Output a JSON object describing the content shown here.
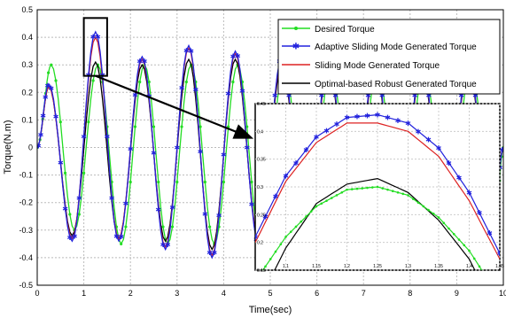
{
  "chart_data": {
    "type": "line",
    "xlabel": "Time(sec)",
    "ylabel": "Torque(N.m)",
    "xlim": [
      0,
      10
    ],
    "ylim": [
      -0.5,
      0.5
    ],
    "xticks": [
      "0",
      "1",
      "2",
      "3",
      "4",
      "5",
      "6",
      "7",
      "8",
      "9",
      "10"
    ],
    "yticks": [
      "0.5",
      "0.4",
      "0.3",
      "0.2",
      "0.1",
      "0",
      "-0.1",
      "-0.2",
      "-0.3",
      "-0.4",
      "-0.5"
    ],
    "grid": "dashed",
    "legend_position": "top-right",
    "series": [
      {
        "name": "Desired Torque",
        "color": "#22dd22",
        "marker": "dot",
        "peaks": [
          [
            0.3,
            0.3
          ],
          [
            1.3,
            0.3
          ],
          [
            2.3,
            0.3
          ],
          [
            3.3,
            0.3
          ],
          [
            4.3,
            0.3
          ],
          [
            5.3,
            0.3
          ],
          [
            6.3,
            0.3
          ],
          [
            7.3,
            0.3
          ],
          [
            8.3,
            0.3
          ],
          [
            9.3,
            0.3
          ]
        ],
        "troughs": [
          [
            0.8,
            -0.3
          ],
          [
            1.8,
            -0.35
          ],
          [
            2.8,
            -0.35
          ],
          [
            3.8,
            -0.35
          ],
          [
            4.8,
            -0.35
          ],
          [
            5.8,
            -0.35
          ],
          [
            6.8,
            -0.35
          ],
          [
            7.8,
            -0.35
          ],
          [
            8.8,
            -0.35
          ],
          [
            9.8,
            -0.35
          ]
        ]
      },
      {
        "name": "Adaptive Sliding Mode Generated Torque",
        "color": "#2222dd",
        "marker": "star",
        "peaks": [
          [
            0.25,
            0.23
          ],
          [
            1.25,
            0.42
          ],
          [
            2.25,
            0.33
          ],
          [
            3.25,
            0.37
          ],
          [
            4.25,
            0.35
          ],
          [
            5.25,
            0.33
          ],
          [
            6.25,
            0.33
          ],
          [
            7.25,
            0.33
          ],
          [
            8.25,
            0.33
          ],
          [
            9.25,
            0.33
          ]
        ],
        "troughs": [
          [
            0.75,
            -0.34
          ],
          [
            1.75,
            -0.34
          ],
          [
            2.75,
            -0.37
          ],
          [
            3.75,
            -0.4
          ],
          [
            4.75,
            -0.35
          ],
          [
            5.75,
            -0.35
          ],
          [
            6.75,
            -0.35
          ],
          [
            7.75,
            -0.35
          ],
          [
            8.75,
            -0.35
          ],
          [
            9.75,
            -0.35
          ]
        ]
      },
      {
        "name": "Sliding Mode Generated Torque",
        "color": "#dd2222",
        "marker": "none",
        "peaks": [
          [
            0.25,
            0.22
          ],
          [
            1.25,
            0.4
          ],
          [
            2.25,
            0.32
          ],
          [
            3.25,
            0.36
          ],
          [
            4.25,
            0.34
          ],
          [
            5.25,
            0.32
          ],
          [
            6.25,
            0.32
          ],
          [
            7.25,
            0.32
          ],
          [
            8.25,
            0.32
          ],
          [
            9.25,
            0.32
          ]
        ],
        "troughs": [
          [
            0.75,
            -0.33
          ],
          [
            1.75,
            -0.33
          ],
          [
            2.75,
            -0.36
          ],
          [
            3.75,
            -0.39
          ],
          [
            4.75,
            -0.34
          ],
          [
            5.75,
            -0.34
          ],
          [
            6.75,
            -0.34
          ],
          [
            7.75,
            -0.34
          ],
          [
            8.75,
            -0.34
          ],
          [
            9.75,
            -0.34
          ]
        ]
      },
      {
        "name": "Optimal-based Robust Generated Torque",
        "color": "#000000",
        "marker": "none",
        "peaks": [
          [
            0.25,
            0.22
          ],
          [
            1.25,
            0.31
          ],
          [
            2.25,
            0.3
          ],
          [
            3.25,
            0.32
          ],
          [
            4.25,
            0.32
          ],
          [
            5.25,
            0.3
          ],
          [
            6.25,
            0.3
          ],
          [
            7.25,
            0.3
          ],
          [
            8.25,
            0.3
          ],
          [
            9.25,
            0.3
          ]
        ],
        "troughs": [
          [
            0.75,
            -0.32
          ],
          [
            1.75,
            -0.33
          ],
          [
            2.75,
            -0.34
          ],
          [
            3.75,
            -0.37
          ],
          [
            4.75,
            -0.33
          ],
          [
            5.75,
            -0.33
          ],
          [
            6.75,
            -0.33
          ],
          [
            7.75,
            -0.33
          ],
          [
            8.75,
            -0.33
          ],
          [
            9.75,
            -0.33
          ]
        ]
      }
    ],
    "zoom_box": {
      "xlim": [
        1.05,
        1.45
      ],
      "ylim": [
        0.15,
        0.45
      ],
      "source_rect": {
        "x": [
          1.0,
          1.5
        ],
        "y": [
          0.26,
          0.47
        ]
      }
    },
    "inset": {
      "xlim": [
        1.05,
        1.45
      ],
      "ylim": [
        0.15,
        0.45
      ],
      "xticks": [
        "1.1",
        "1.15",
        "1.2",
        "1.25",
        "1.3",
        "1.35",
        "1.4",
        "1.45"
      ],
      "yticks": [
        "0.45",
        "0.4",
        "0.35",
        "0.3",
        "0.25",
        "0.2",
        "0.15"
      ],
      "series": [
        {
          "name": "Desired Torque",
          "x": [
            1.05,
            1.1,
            1.15,
            1.2,
            1.25,
            1.3,
            1.35,
            1.4,
            1.45
          ],
          "y": [
            0.13,
            0.21,
            0.265,
            0.295,
            0.3,
            0.285,
            0.245,
            0.185,
            0.1
          ]
        },
        {
          "name": "Adaptive Sliding Mode Generated Torque",
          "x": [
            1.05,
            1.1,
            1.15,
            1.2,
            1.25,
            1.3,
            1.35,
            1.4,
            1.45
          ],
          "y": [
            0.21,
            0.32,
            0.39,
            0.425,
            0.43,
            0.415,
            0.37,
            0.29,
            0.18
          ]
        },
        {
          "name": "Sliding Mode Generated Torque",
          "x": [
            1.05,
            1.1,
            1.15,
            1.2,
            1.25,
            1.3,
            1.35,
            1.4,
            1.45
          ],
          "y": [
            0.2,
            0.31,
            0.38,
            0.415,
            0.415,
            0.4,
            0.355,
            0.275,
            0.17
          ]
        },
        {
          "name": "Optimal-based Robust Generated Torque",
          "x": [
            1.05,
            1.1,
            1.15,
            1.2,
            1.25,
            1.3,
            1.35,
            1.4,
            1.45
          ],
          "y": [
            0.08,
            0.19,
            0.27,
            0.305,
            0.315,
            0.29,
            0.24,
            0.17,
            0.06
          ]
        }
      ]
    }
  }
}
